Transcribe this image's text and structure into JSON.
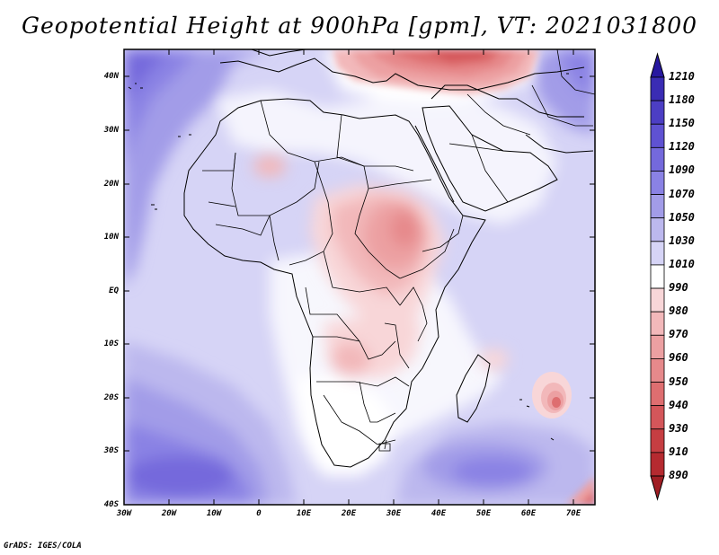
{
  "title": "Geopotential Height at 900hPa [gpm], VT: 2021031800",
  "credit": "GrADS: IGES/COLA",
  "map": {
    "type": "filled-contour-map",
    "region": "Africa",
    "lon_range": [
      -30,
      75
    ],
    "lat_range": [
      -40,
      45
    ],
    "y_ticks": [
      "40N",
      "30N",
      "20N",
      "10N",
      "EQ",
      "10S",
      "20S",
      "30S",
      "40S"
    ],
    "x_ticks": [
      "30W",
      "20W",
      "10W",
      "0",
      "10E",
      "20E",
      "30E",
      "40E",
      "50E",
      "60E",
      "70E"
    ]
  },
  "colorbar": {
    "levels": [
      "1210",
      "1180",
      "1150",
      "1120",
      "1090",
      "1070",
      "1050",
      "1030",
      "1010",
      "990",
      "980",
      "970",
      "960",
      "950",
      "940",
      "930",
      "910",
      "890"
    ],
    "colors": [
      "#2818a0",
      "#3a2cb4",
      "#4c3ec4",
      "#5f52d2",
      "#7469dc",
      "#8a82e4",
      "#a29ce8",
      "#bcb8ee",
      "#d6d4f6",
      "#ffffff",
      "#f8d6d8",
      "#f2b8ba",
      "#eca0a2",
      "#e6898b",
      "#de6e70",
      "#d4565a",
      "#c63e42",
      "#b52a30",
      "#a01e24"
    ]
  }
}
